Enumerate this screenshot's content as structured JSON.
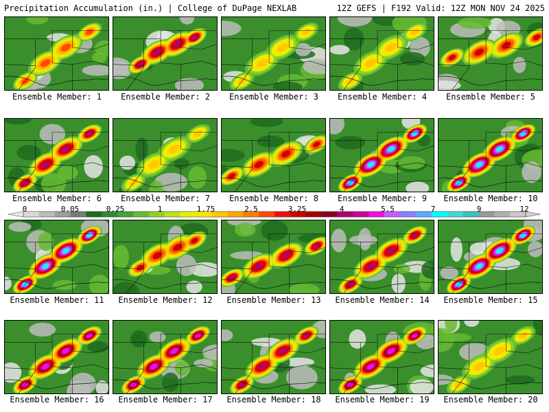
{
  "header": {
    "left": "Precipitation Accumulation (in.) | College of DuPage NEXLAB",
    "right": "12Z GEFS | F192 Valid: 12Z MON NOV 24 2025"
  },
  "panels": [
    {
      "label": "Ensemble Member: 1",
      "max": "2.5",
      "axis": "ne"
    },
    {
      "label": "Ensemble Member: 2",
      "max": "4",
      "axis": "blob"
    },
    {
      "label": "Ensemble Member: 3",
      "max": "1.75",
      "axis": "ne"
    },
    {
      "label": "Ensemble Member: 4",
      "max": "1.75",
      "axis": "ne"
    },
    {
      "label": "Ensemble Member: 5",
      "max": "3.25",
      "axis": "east"
    },
    {
      "label": "Ensemble Member: 6",
      "max": "4",
      "axis": "ne"
    },
    {
      "label": "Ensemble Member: 7",
      "max": "1.75",
      "axis": "ne"
    },
    {
      "label": "Ensemble Member: 8",
      "max": "3.25",
      "axis": "ene"
    },
    {
      "label": "Ensemble Member: 9",
      "max": "7",
      "axis": "ne"
    },
    {
      "label": "Ensemble Member: 10",
      "max": "7",
      "axis": "ne"
    },
    {
      "label": "Ensemble Member: 11",
      "max": "7",
      "axis": "ne"
    },
    {
      "label": "Ensemble Member: 12",
      "max": "3.25",
      "axis": "blob"
    },
    {
      "label": "Ensemble Member: 13",
      "max": "4",
      "axis": "ene"
    },
    {
      "label": "Ensemble Member: 14",
      "max": "4",
      "axis": "ne"
    },
    {
      "label": "Ensemble Member: 15",
      "max": "7",
      "axis": "ne"
    },
    {
      "label": "Ensemble Member: 16",
      "max": "5.5",
      "axis": "ne"
    },
    {
      "label": "Ensemble Member: 17",
      "max": "5.5",
      "axis": "ne"
    },
    {
      "label": "Ensemble Member: 18",
      "max": "4",
      "axis": "ne"
    },
    {
      "label": "Ensemble Member: 19",
      "max": "5.5",
      "axis": "ne"
    },
    {
      "label": "Ensemble Member: 20",
      "max": "1.75",
      "axis": "ne"
    }
  ],
  "colorbar": {
    "labels": [
      "0",
      "0.05",
      "0.25",
      "1",
      "1.75",
      "2.5",
      "3.25",
      "4",
      "5.5",
      "7",
      "9",
      "12"
    ],
    "colors": [
      "#d9d9d9",
      "#bdbdbd",
      "#9c9c9c",
      "#7a7a7a",
      "#1e6b1e",
      "#2e8b2e",
      "#44a336",
      "#66bb33",
      "#8fd12a",
      "#bde21e",
      "#e8f000",
      "#fde400",
      "#ffc800",
      "#ffa500",
      "#ff7c00",
      "#ff4a00",
      "#f01010",
      "#cc0000",
      "#a80000",
      "#8b0020",
      "#b00070",
      "#d0009a",
      "#ee10e0",
      "#c060ff",
      "#8a80ff",
      "#60a8ff",
      "#00ffff",
      "#40d8d8",
      "#40c0c0",
      "#999999",
      "#b0b0b0",
      "#c8c8c8"
    ]
  }
}
